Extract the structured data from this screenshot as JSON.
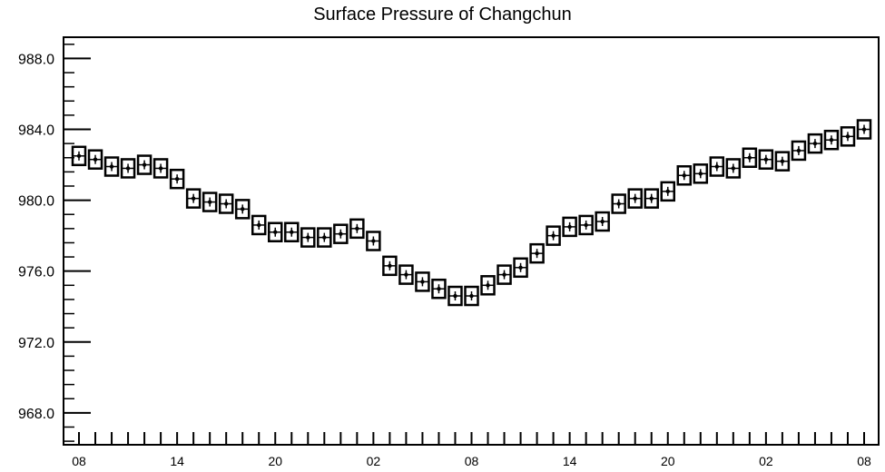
{
  "chart_data": {
    "type": "line",
    "title": "Surface Pressure of Changchun",
    "xlabel": "",
    "ylabel": "",
    "ylim": [
      966.2,
      989.2
    ],
    "y_ticks": [
      968.0,
      972.0,
      976.0,
      980.0,
      984.0,
      988.0
    ],
    "y_tick_labels": [
      "968.0",
      "972.0",
      "976.0",
      "980.0",
      "984.0",
      "988.0"
    ],
    "x_tick_labels": [
      {
        "hour": 0,
        "label": "08"
      },
      {
        "hour": 6,
        "label": "14"
      },
      {
        "hour": 12,
        "label": "20"
      },
      {
        "hour": 18,
        "label": "02"
      },
      {
        "hour": 24,
        "label": "08"
      },
      {
        "hour": 30,
        "label": "14"
      },
      {
        "hour": 36,
        "label": "20"
      },
      {
        "hour": 42,
        "label": "02"
      },
      {
        "hour": 48,
        "label": "08"
      }
    ],
    "x_hours": [
      0,
      1,
      2,
      3,
      4,
      5,
      6,
      7,
      8,
      9,
      10,
      11,
      12,
      13,
      14,
      15,
      16,
      17,
      18,
      19,
      20,
      21,
      22,
      23,
      24,
      25,
      26,
      27,
      28,
      29,
      30,
      31,
      32,
      33,
      34,
      35,
      36,
      37,
      38,
      39,
      40,
      41,
      42,
      43,
      44,
      45,
      46,
      47,
      48
    ],
    "series": [
      {
        "values": [
          982.5,
          982.3,
          981.9,
          981.8,
          982.0,
          981.8,
          981.2,
          980.1,
          979.9,
          979.8,
          979.5,
          978.6,
          978.2,
          978.2,
          977.9,
          977.9,
          978.1,
          978.4,
          977.7,
          976.3,
          975.8,
          975.4,
          975.0,
          974.6,
          974.6,
          975.2,
          975.8,
          976.2,
          977.0,
          978.0,
          978.5,
          978.6,
          978.8,
          979.8,
          980.1,
          980.1,
          980.5,
          981.4,
          981.5,
          981.9,
          981.8,
          982.4,
          982.3,
          982.2,
          982.8,
          983.2,
          983.4,
          983.6,
          984.0
        ]
      }
    ],
    "grid": false,
    "legend": "none"
  }
}
